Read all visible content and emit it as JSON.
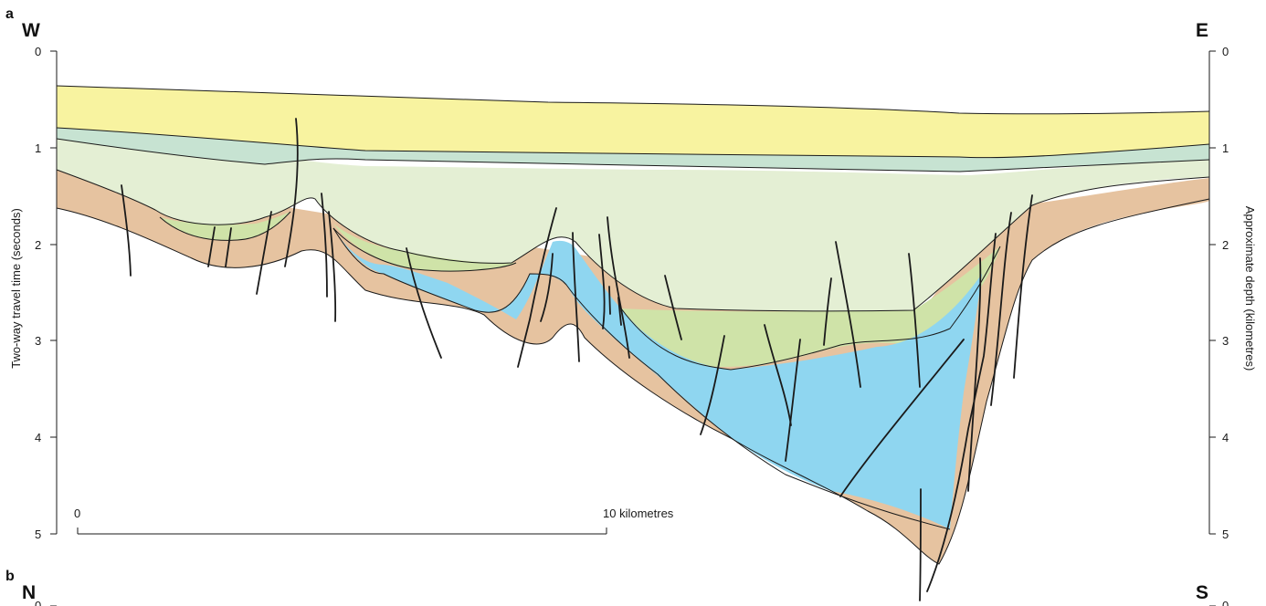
{
  "panels": [
    {
      "label": "a",
      "left_direction": "W",
      "right_direction": "E"
    },
    {
      "label": "b",
      "left_direction": "N",
      "right_direction": "S"
    }
  ],
  "left_axis": {
    "title": "Two-way travel time (seconds)",
    "ticks": [
      "0",
      "1",
      "2",
      "3",
      "4",
      "5"
    ]
  },
  "right_axis": {
    "title": "Approximate depth (kilometres)",
    "ticks": [
      "0",
      "1",
      "2",
      "3",
      "4",
      "5"
    ]
  },
  "lower_panel_ticks": {
    "left": "0",
    "right": "0"
  },
  "scale_bar": {
    "start_label": "0",
    "end_label": "10 kilometres"
  },
  "colors": {
    "top_layer": "#f8f3a0",
    "teal_band": "#c7e3d2",
    "pale_green": "#e4efd4",
    "green_wedge": "#cfe3a8",
    "blue_unit": "#8fd6f0",
    "basement": "#e6c3a0",
    "line": "#1a1a1a"
  }
}
